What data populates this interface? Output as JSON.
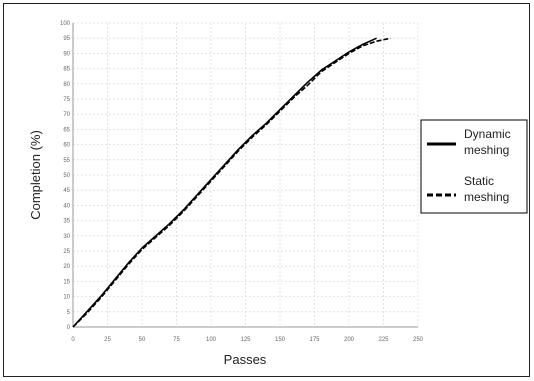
{
  "chart_data": {
    "type": "line",
    "xlabel": "Passes",
    "ylabel": "Completion (%)",
    "xlim": [
      0,
      250
    ],
    "ylim": [
      0,
      100
    ],
    "x_ticks": [
      0,
      25,
      50,
      75,
      100,
      125,
      150,
      175,
      200,
      225,
      250
    ],
    "y_ticks": [
      0,
      5,
      10,
      15,
      20,
      25,
      30,
      35,
      40,
      45,
      50,
      55,
      60,
      65,
      70,
      75,
      80,
      85,
      90,
      95,
      100
    ],
    "grid": true,
    "legend_position": "right",
    "series": [
      {
        "name": "Dynamic meshing",
        "style": "solid",
        "color": "#000000",
        "x": [
          0,
          10,
          20,
          30,
          40,
          50,
          60,
          70,
          80,
          90,
          100,
          110,
          120,
          130,
          140,
          150,
          160,
          170,
          180,
          190,
          200,
          210,
          220
        ],
        "y": [
          0,
          5,
          10,
          15.5,
          21,
          26,
          30,
          34,
          38.5,
          43.5,
          48.5,
          53.5,
          58.5,
          63,
          67,
          71.5,
          76,
          80.5,
          84.5,
          87.5,
          90.5,
          93,
          95
        ]
      },
      {
        "name": "Static meshing",
        "style": "dashed",
        "color": "#000000",
        "x": [
          0,
          10,
          20,
          30,
          40,
          50,
          60,
          70,
          80,
          90,
          100,
          110,
          120,
          130,
          140,
          150,
          160,
          170,
          180,
          190,
          200,
          210,
          220,
          230
        ],
        "y": [
          0,
          4.5,
          9.5,
          15,
          20.5,
          25.5,
          29.5,
          33.5,
          38,
          43,
          48,
          53,
          58,
          62.5,
          66.5,
          71,
          75.5,
          79.5,
          84,
          87,
          90,
          92.5,
          94,
          95
        ]
      }
    ]
  }
}
